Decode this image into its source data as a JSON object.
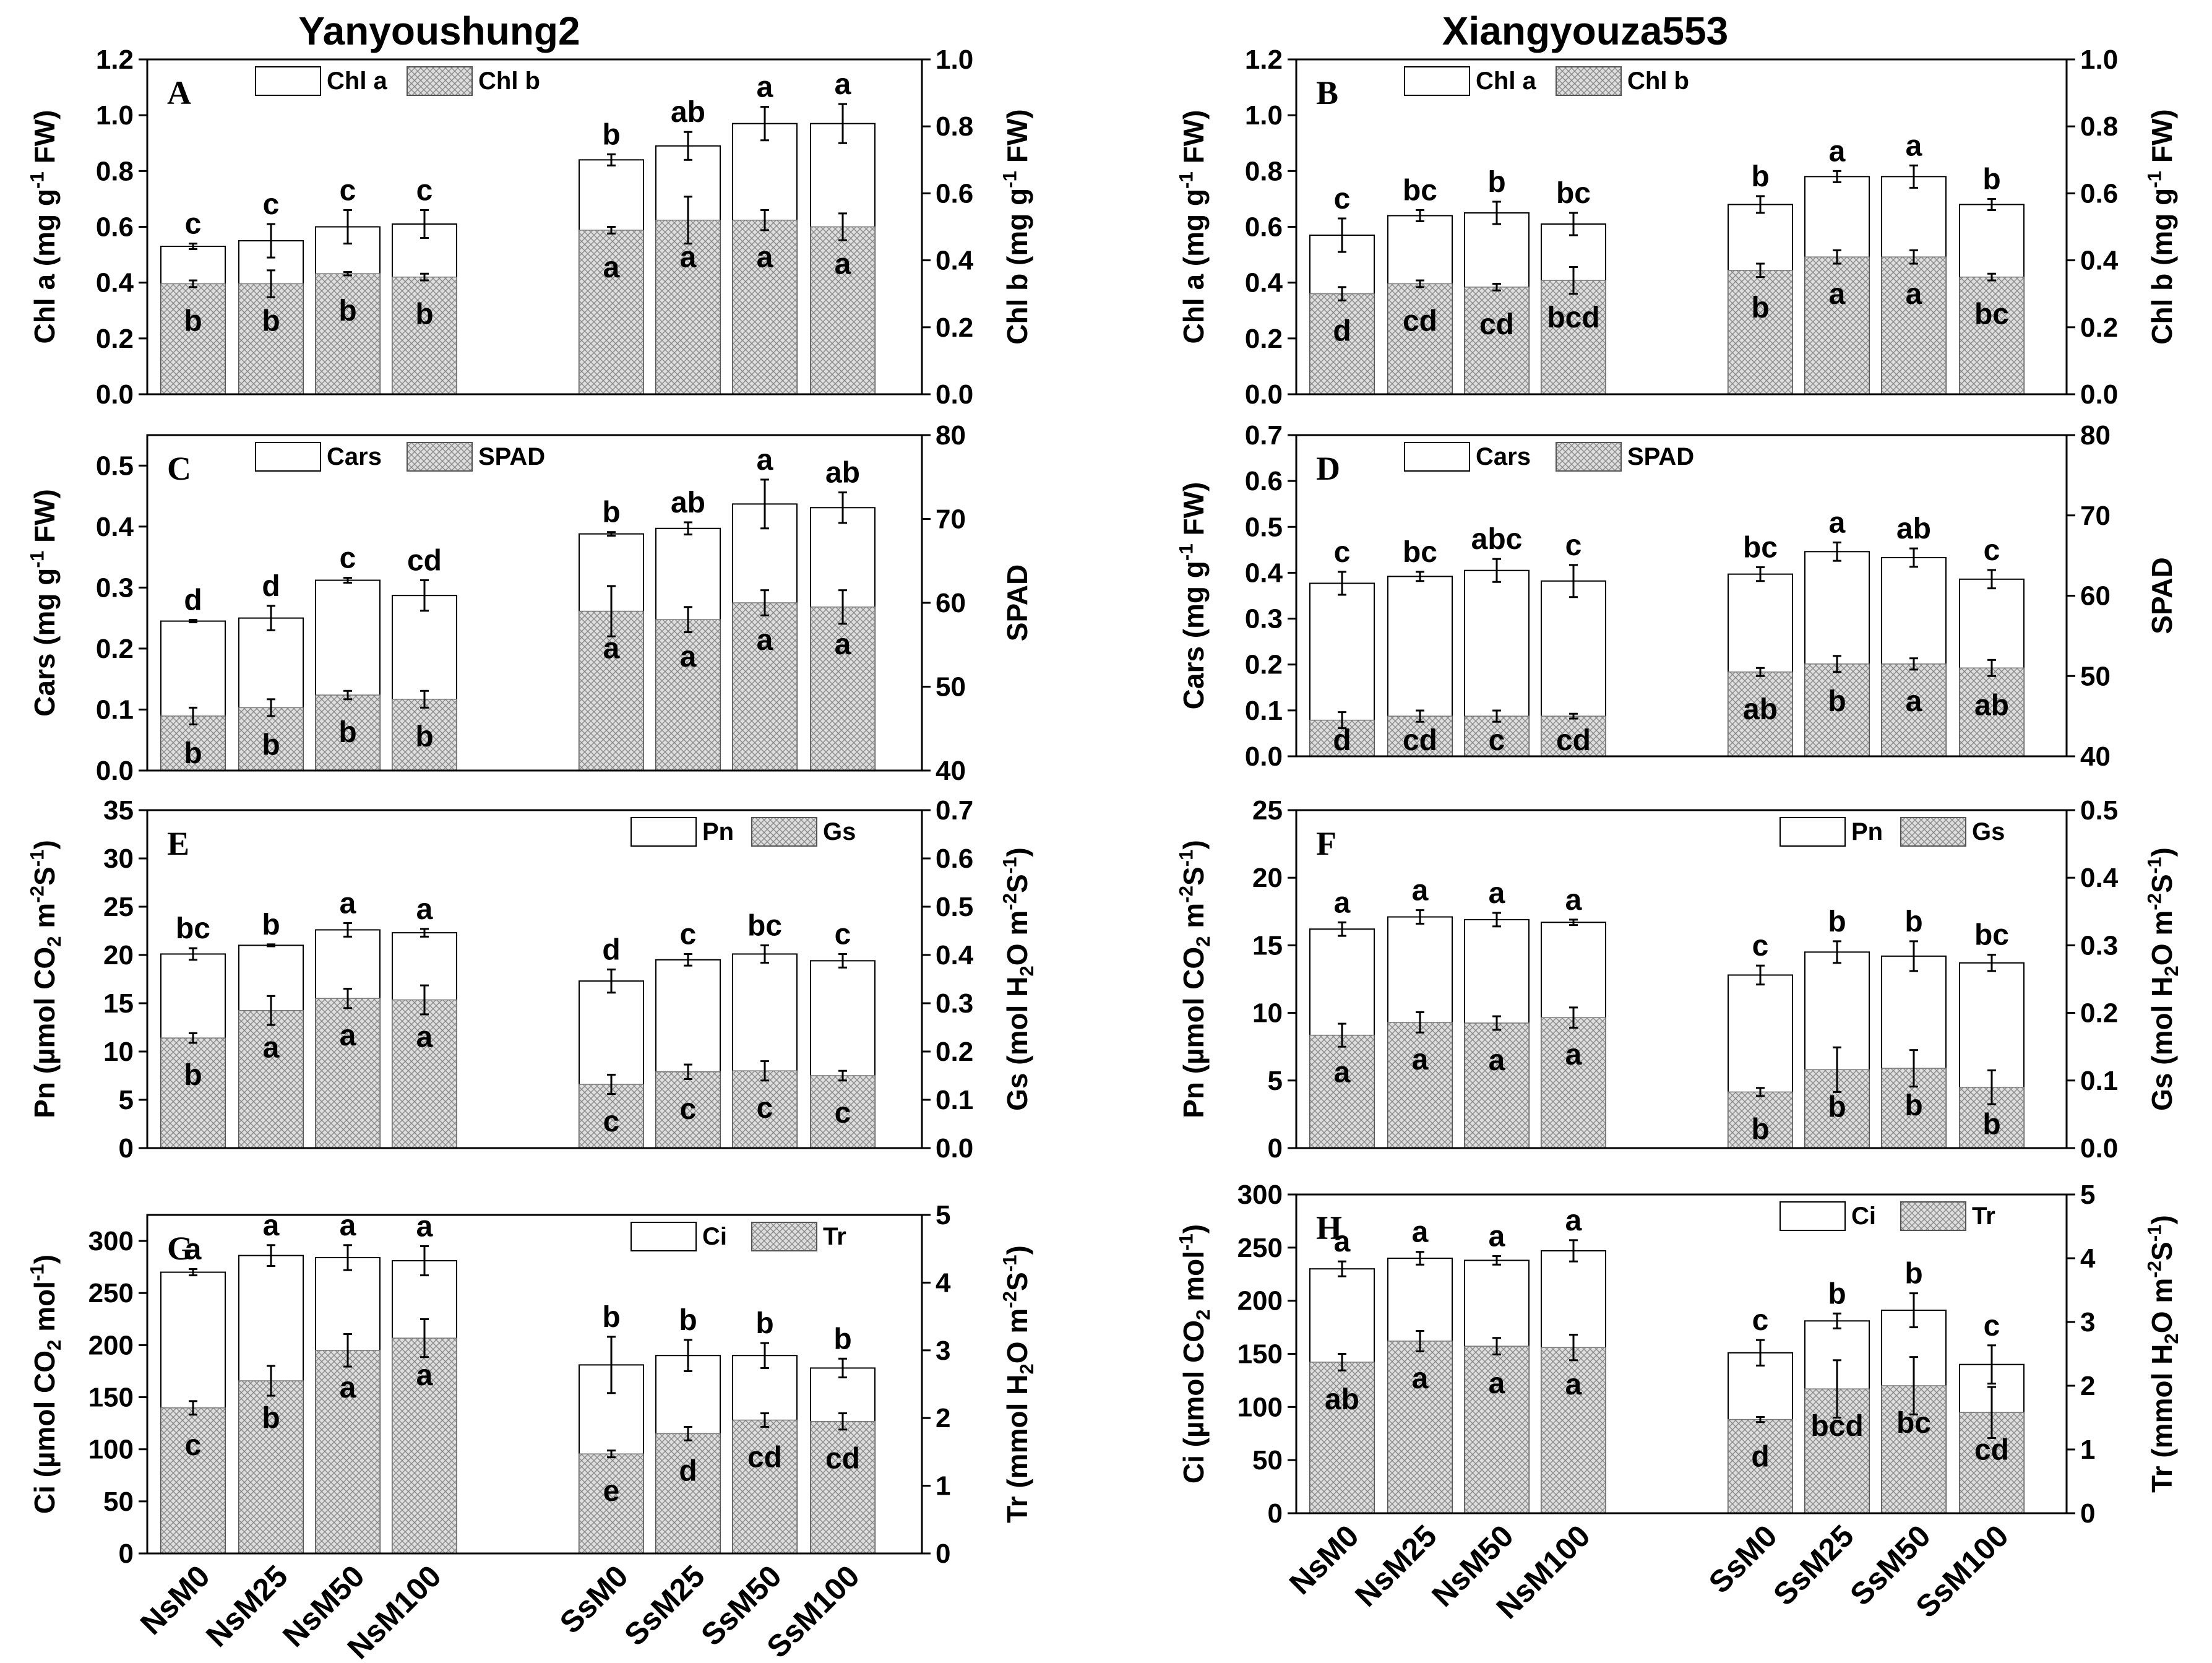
{
  "figure": {
    "col_titles": [
      "Yanyoushung2",
      "Xiangyouza553"
    ]
  },
  "groups": [
    "NsM0",
    "NsM25",
    "NsM50",
    "NsM100",
    "SsM0",
    "SsM25",
    "SsM50",
    "SsM100"
  ],
  "chart_data": [
    {
      "panel": "A",
      "type": "bar",
      "title": "Yanyoushung2",
      "categories": [
        "NsM0",
        "NsM25",
        "NsM50",
        "NsM100",
        "SsM0",
        "SsM25",
        "SsM50",
        "SsM100"
      ],
      "ylabel": "Chl a (mg g-1 FW)",
      "y2label": "Chl b (mg g-1 FW)",
      "ylim": [
        0,
        1.2
      ],
      "ystep": 0.2,
      "y2lim": [
        0,
        1.0
      ],
      "y2step": 0.2,
      "y_decimals": 1,
      "y2_decimals": 1,
      "legend": [
        "Chl a",
        "Chl b"
      ],
      "legend_position": "top-left",
      "series": [
        {
          "name": "Chl a",
          "axis": "left",
          "values": [
            0.53,
            0.55,
            0.6,
            0.61,
            0.84,
            0.89,
            0.97,
            0.97
          ],
          "errors": [
            0.01,
            0.06,
            0.06,
            0.05,
            0.02,
            0.05,
            0.06,
            0.07
          ],
          "letters": [
            "c",
            "c",
            "c",
            "c",
            "b",
            "ab",
            "a",
            "a"
          ]
        },
        {
          "name": "Chl b",
          "axis": "right",
          "values": [
            0.33,
            0.33,
            0.36,
            0.35,
            0.49,
            0.52,
            0.52,
            0.5
          ],
          "errors": [
            0.01,
            0.04,
            0.005,
            0.01,
            0.01,
            0.07,
            0.03,
            0.04
          ],
          "letters": [
            "b",
            "b",
            "b",
            "b",
            "a",
            "a",
            "a",
            "a"
          ]
        }
      ]
    },
    {
      "panel": "B",
      "type": "bar",
      "title": "Xiangyouza553",
      "categories": [
        "NsM0",
        "NsM25",
        "NsM50",
        "NsM100",
        "SsM0",
        "SsM25",
        "SsM50",
        "SsM100"
      ],
      "ylabel": "Chl a (mg g-1 FW)",
      "y2label": "Chl b (mg g-1 FW)",
      "ylim": [
        0,
        1.2
      ],
      "ystep": 0.2,
      "y2lim": [
        0,
        1.0
      ],
      "y2step": 0.2,
      "y_decimals": 1,
      "y2_decimals": 1,
      "legend": [
        "Chl a",
        "Chl b"
      ],
      "legend_position": "top-left",
      "series": [
        {
          "name": "Chl a",
          "axis": "left",
          "values": [
            0.57,
            0.64,
            0.65,
            0.61,
            0.68,
            0.78,
            0.78,
            0.68
          ],
          "errors": [
            0.06,
            0.02,
            0.04,
            0.04,
            0.03,
            0.02,
            0.04,
            0.02
          ],
          "letters": [
            "c",
            "bc",
            "b",
            "bc",
            "b",
            "a",
            "a",
            "b"
          ]
        },
        {
          "name": "Chl b",
          "axis": "right",
          "values": [
            0.3,
            0.33,
            0.32,
            0.34,
            0.37,
            0.41,
            0.41,
            0.35
          ],
          "errors": [
            0.02,
            0.01,
            0.01,
            0.04,
            0.02,
            0.02,
            0.02,
            0.01
          ],
          "letters": [
            "d",
            "cd",
            "cd",
            "bcd",
            "b",
            "a",
            "a",
            "bc"
          ]
        }
      ]
    },
    {
      "panel": "C",
      "type": "bar",
      "title": "",
      "categories": [
        "NsM0",
        "NsM25",
        "NsM50",
        "NsM100",
        "SsM0",
        "SsM25",
        "SsM50",
        "SsM100"
      ],
      "ylabel": "Cars (mg g-1 FW)",
      "y2label": "SPAD",
      "ylim": [
        0,
        0.55
      ],
      "ystep": 0.1,
      "y2lim": [
        40,
        80
      ],
      "y2step": 10,
      "y_decimals": 1,
      "y2_decimals": 0,
      "legend": [
        "Cars",
        "SPAD"
      ],
      "legend_position": "top-left",
      "series": [
        {
          "name": "Cars",
          "axis": "left",
          "values": [
            0.245,
            0.25,
            0.312,
            0.287,
            0.388,
            0.397,
            0.437,
            0.431
          ],
          "errors": [
            0.002,
            0.02,
            0.004,
            0.025,
            0.003,
            0.01,
            0.04,
            0.025
          ],
          "letters": [
            "d",
            "d",
            "c",
            "cd",
            "b",
            "ab",
            "a",
            "ab"
          ]
        },
        {
          "name": "SPAD",
          "axis": "right",
          "values": [
            46.5,
            47.5,
            49.0,
            48.5,
            59.0,
            58.0,
            60.0,
            59.5
          ],
          "errors": [
            1.0,
            1.0,
            0.5,
            1.0,
            3.0,
            1.5,
            1.5,
            2.0
          ],
          "letters": [
            "b",
            "b",
            "b",
            "b",
            "a",
            "a",
            "a",
            "a"
          ]
        }
      ]
    },
    {
      "panel": "D",
      "type": "bar",
      "title": "",
      "categories": [
        "NsM0",
        "NsM25",
        "NsM50",
        "NsM100",
        "SsM0",
        "SsM25",
        "SsM50",
        "SsM100"
      ],
      "ylabel": "Cars (mg g-1 FW)",
      "y2label": "SPAD",
      "ylim": [
        0,
        0.7
      ],
      "ystep": 0.1,
      "y2lim": [
        40,
        80
      ],
      "y2step": 10,
      "y_decimals": 1,
      "y2_decimals": 0,
      "legend": [
        "Cars",
        "SPAD"
      ],
      "legend_position": "top-left",
      "series": [
        {
          "name": "Cars",
          "axis": "left",
          "values": [
            0.377,
            0.392,
            0.405,
            0.382,
            0.397,
            0.446,
            0.433,
            0.386
          ],
          "errors": [
            0.025,
            0.01,
            0.025,
            0.035,
            0.015,
            0.02,
            0.02,
            0.02
          ],
          "letters": [
            "c",
            "bc",
            "abc",
            "c",
            "bc",
            "a",
            "ab",
            "c"
          ]
        },
        {
          "name": "SPAD",
          "axis": "right",
          "values": [
            44.5,
            45.0,
            45.0,
            45.0,
            50.5,
            51.5,
            51.5,
            51.0
          ],
          "errors": [
            1.0,
            0.7,
            0.7,
            0.3,
            0.5,
            1.0,
            0.7,
            1.0
          ],
          "letters": [
            "d",
            "cd",
            "c",
            "cd",
            "ab",
            "b",
            "a",
            "ab"
          ]
        }
      ]
    },
    {
      "panel": "E",
      "type": "bar",
      "title": "",
      "categories": [
        "NsM0",
        "NsM25",
        "NsM50",
        "NsM100",
        "SsM0",
        "SsM25",
        "SsM50",
        "SsM100"
      ],
      "ylabel": "Pn (µmol CO2 m-2S-1)",
      "y2label": "Gs (mol H2O m-2S-1)",
      "ylim": [
        0,
        35
      ],
      "ystep": 5,
      "y2lim": [
        0,
        0.7
      ],
      "y2step": 0.1,
      "y_decimals": 0,
      "y2_decimals": 1,
      "legend": [
        "Pn",
        "Gs"
      ],
      "legend_position": "top-right",
      "series": [
        {
          "name": "Pn",
          "axis": "left",
          "values": [
            20.1,
            21.0,
            22.6,
            22.3,
            17.3,
            19.5,
            20.1,
            19.4
          ],
          "errors": [
            0.6,
            0.1,
            0.7,
            0.4,
            1.2,
            0.6,
            0.9,
            0.7
          ],
          "letters": [
            "bc",
            "b",
            "a",
            "a",
            "d",
            "c",
            "bc",
            "c"
          ]
        },
        {
          "name": "Gs",
          "axis": "right",
          "values": [
            0.228,
            0.285,
            0.31,
            0.307,
            0.132,
            0.158,
            0.16,
            0.15
          ],
          "errors": [
            0.01,
            0.03,
            0.02,
            0.03,
            0.02,
            0.015,
            0.02,
            0.01
          ],
          "letters": [
            "b",
            "a",
            "a",
            "a",
            "c",
            "c",
            "c",
            "c"
          ]
        }
      ]
    },
    {
      "panel": "F",
      "type": "bar",
      "title": "",
      "categories": [
        "NsM0",
        "NsM25",
        "NsM50",
        "NsM100",
        "SsM0",
        "SsM25",
        "SsM50",
        "SsM100"
      ],
      "ylabel": "Pn (µmol CO2 m-2S-1)",
      "y2label": "Gs (mol H2O m-2S-1)",
      "ylim": [
        0,
        25
      ],
      "ystep": 5,
      "y2lim": [
        0,
        0.5
      ],
      "y2step": 0.1,
      "y_decimals": 0,
      "y2_decimals": 1,
      "legend": [
        "Pn",
        "Gs"
      ],
      "legend_position": "top-right",
      "series": [
        {
          "name": "Pn",
          "axis": "left",
          "values": [
            16.2,
            17.1,
            16.9,
            16.7,
            12.8,
            14.5,
            14.2,
            13.7
          ],
          "errors": [
            0.5,
            0.5,
            0.5,
            0.2,
            0.7,
            0.8,
            1.1,
            0.6
          ],
          "letters": [
            "a",
            "a",
            "a",
            "a",
            "c",
            "b",
            "b",
            "bc"
          ]
        },
        {
          "name": "Gs",
          "axis": "right",
          "values": [
            0.167,
            0.186,
            0.185,
            0.193,
            0.083,
            0.116,
            0.118,
            0.09
          ],
          "errors": [
            0.017,
            0.015,
            0.01,
            0.015,
            0.006,
            0.033,
            0.027,
            0.025
          ],
          "letters": [
            "a",
            "a",
            "a",
            "a",
            "b",
            "b",
            "b",
            "b"
          ]
        }
      ]
    },
    {
      "panel": "G",
      "type": "bar",
      "title": "",
      "categories": [
        "NsM0",
        "NsM25",
        "NsM50",
        "NsM100",
        "SsM0",
        "SsM25",
        "SsM50",
        "SsM100"
      ],
      "ylabel": "Ci (µmol CO2 mol-1)",
      "y2label": "Tr (mmol H2O m-2S-1)",
      "ylim": [
        0,
        325
      ],
      "ystep": 50,
      "y2lim": [
        0,
        5
      ],
      "y2step": 1,
      "y_decimals": 0,
      "y2_decimals": 0,
      "legend": [
        "Ci",
        "Tr"
      ],
      "legend_position": "top-right",
      "series": [
        {
          "name": "Ci",
          "axis": "left",
          "values": [
            270,
            286,
            284,
            281,
            181,
            190,
            190,
            178
          ],
          "errors": [
            3,
            10,
            12,
            14,
            27,
            15,
            12,
            9
          ],
          "letters": [
            "a",
            "a",
            "a",
            "a",
            "b",
            "b",
            "b",
            "b"
          ]
        },
        {
          "name": "Tr",
          "axis": "right",
          "values": [
            2.15,
            2.55,
            3.0,
            3.18,
            1.47,
            1.77,
            1.97,
            1.95
          ],
          "errors": [
            0.1,
            0.22,
            0.24,
            0.28,
            0.05,
            0.1,
            0.1,
            0.12
          ],
          "letters": [
            "c",
            "b",
            "a",
            "a",
            "e",
            "d",
            "cd",
            "cd"
          ]
        }
      ]
    },
    {
      "panel": "H",
      "type": "bar",
      "title": "",
      "categories": [
        "NsM0",
        "NsM25",
        "NsM50",
        "NsM100",
        "SsM0",
        "SsM25",
        "SsM50",
        "SsM100"
      ],
      "ylabel": "Ci (µmol CO2 mol-1)",
      "y2label": "Tr (mmol H2O m-2S-1)",
      "ylim": [
        0,
        300
      ],
      "ystep": 50,
      "y2lim": [
        0,
        5
      ],
      "y2step": 1,
      "y_decimals": 0,
      "y2_decimals": 0,
      "legend": [
        "Ci",
        "Tr"
      ],
      "legend_position": "top-right",
      "series": [
        {
          "name": "Ci",
          "axis": "left",
          "values": [
            230,
            240,
            238,
            247,
            151,
            181,
            191,
            140
          ],
          "errors": [
            7,
            6,
            4,
            10,
            12,
            7,
            16,
            18
          ],
          "letters": [
            "a",
            "a",
            "a",
            "a",
            "c",
            "b",
            "b",
            "c"
          ]
        },
        {
          "name": "Tr",
          "axis": "right",
          "values": [
            2.37,
            2.7,
            2.62,
            2.6,
            1.47,
            1.95,
            2.0,
            1.58
          ],
          "errors": [
            0.13,
            0.16,
            0.13,
            0.2,
            0.04,
            0.45,
            0.45,
            0.4
          ],
          "letters": [
            "ab",
            "a",
            "a",
            "a",
            "d",
            "bcd",
            "bc",
            "cd"
          ]
        }
      ]
    }
  ]
}
